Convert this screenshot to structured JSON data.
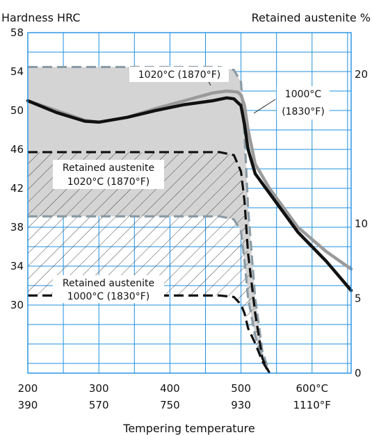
{
  "chart_data": {
    "type": "line",
    "title": "",
    "xlabel": "Tempering temperature",
    "y_left_label": "Hardness HRC",
    "y_right_label": "Retained austenite %",
    "x_ticks_c": [
      "200",
      "300",
      "400",
      "500",
      "600°C"
    ],
    "x_ticks_f": [
      "390",
      "570",
      "750",
      "930",
      "1110°F"
    ],
    "x_tick_values": [
      200,
      300,
      400,
      500,
      600
    ],
    "xlim": [
      200,
      655
    ],
    "y_left_ticks": [
      30,
      34,
      38,
      42,
      46,
      50,
      54,
      58
    ],
    "y_left_tick_labels": [
      "30",
      "34",
      "38",
      "42",
      "46",
      "50",
      "54",
      "58"
    ],
    "ylim_left": [
      23,
      58
    ],
    "y_right_ticks": [
      0,
      5,
      10,
      20
    ],
    "y_right_tick_labels": [
      "0",
      "5",
      "10",
      "20"
    ],
    "grid": true,
    "series": [
      {
        "name": "1020°C (1870°F)",
        "kind": "hardness",
        "color": "#9a9a9a",
        "x": [
          200,
          240,
          280,
          300,
          340,
          380,
          420,
          460,
          480,
          495,
          500,
          505,
          510,
          520,
          540,
          580,
          620,
          655
        ],
        "y": [
          51.0,
          50.0,
          49.0,
          48.8,
          49.3,
          50.2,
          51.0,
          51.8,
          52.0,
          51.9,
          51.6,
          50.5,
          48.0,
          44.5,
          42.0,
          38.0,
          35.5,
          33.7
        ]
      },
      {
        "name": "1000°C (1830°F)",
        "kind": "hardness",
        "color": "#111111",
        "x": [
          200,
          240,
          280,
          300,
          340,
          380,
          420,
          460,
          480,
          490,
          500,
          505,
          510,
          520,
          540,
          580,
          620,
          655
        ],
        "y": [
          51.0,
          49.8,
          48.9,
          48.8,
          49.3,
          50.0,
          50.6,
          51.0,
          51.3,
          51.2,
          50.5,
          48.5,
          46.0,
          43.5,
          41.5,
          37.5,
          34.5,
          31.5
        ]
      },
      {
        "name": "Retained austenite 1020°C (1870°F)",
        "kind": "austenite_band",
        "color": "#8a9ba5",
        "fill": "#d4d4d4",
        "x": [
          200,
          300,
          400,
          470,
          490,
          500,
          505,
          510,
          520,
          530,
          540
        ],
        "upper": [
          20.5,
          20.5,
          20.5,
          20.5,
          20.3,
          19.5,
          16.0,
          11.0,
          5.0,
          1.5,
          0
        ],
        "lower": [
          10.5,
          10.5,
          10.5,
          10.5,
          10.3,
          9.5,
          7.5,
          5.0,
          2.5,
          1.0,
          0
        ]
      },
      {
        "name": "Retained austenite 1000°C (1830°F)",
        "kind": "austenite_band",
        "color": "#111111",
        "fill": "hatch",
        "x": [
          200,
          300,
          400,
          470,
          490,
          500,
          505,
          510,
          520,
          530,
          540
        ],
        "upper": [
          14.8,
          14.8,
          14.8,
          14.8,
          14.6,
          13.5,
          11.5,
          8.0,
          4.0,
          1.0,
          0
        ],
        "lower": [
          5.2,
          5.2,
          5.2,
          5.2,
          5.1,
          4.6,
          4.0,
          3.0,
          2.0,
          0.8,
          0
        ]
      }
    ],
    "annotations": [
      "1020°C (1870°F)",
      "1000°C",
      "(1830°F)",
      "Retained austenite",
      "1020°C (1870°F)",
      "Retained austenite",
      "1000°C (1830°F)"
    ]
  }
}
